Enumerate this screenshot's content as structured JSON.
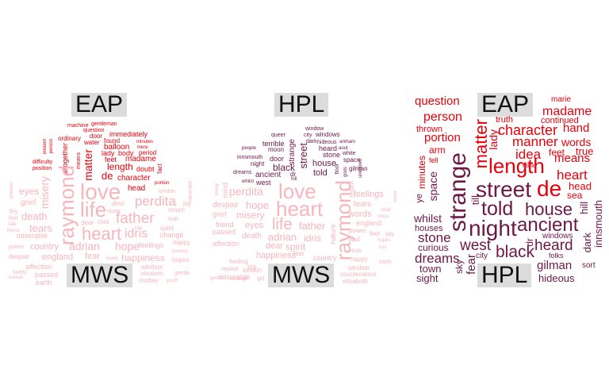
{
  "colors": {
    "eap": "#e8000b",
    "hpl": "#6e1848",
    "mws": "#f7b5bd",
    "tag_bg": "#dcdcdc"
  },
  "panels": [
    {
      "id": "left",
      "top_label": "EAP",
      "bottom_label": "MWS",
      "eap_words": [
        "machine",
        "gentleman",
        "question",
        "door",
        "immediately",
        "ordinary",
        "water",
        "found",
        "minutes",
        "mere",
        "person",
        "evident",
        "balloon",
        "lady",
        "body",
        "period",
        "altogether",
        "matter",
        "length",
        "feet",
        "madame",
        "difficulty",
        "position",
        "de",
        "character",
        "doubt",
        "fact",
        "means",
        "portion",
        "head"
      ],
      "mws_words": [
        "love",
        "life",
        "heart",
        "raymond",
        "father",
        "perdita",
        "misery",
        "eyes",
        "death",
        "tears",
        "grief",
        "idris",
        "adrian",
        "hope",
        "happiness",
        "country",
        "england",
        "fear",
        "feelings",
        "miserable",
        "windsor",
        "affection",
        "passed",
        "earth",
        "mother",
        "youth",
        "gentle",
        "power",
        "despair",
        "sister",
        "spirit",
        "return",
        "sun",
        "change",
        "hopes",
        "happy",
        "journey",
        "elizabeth",
        "lovely",
        "human",
        "loved",
        "dear",
        "child",
        "joy",
        "thy",
        "feel",
        "tale",
        "friend",
        "children",
        "london",
        "returned",
        "died",
        "lost"
      ]
    },
    {
      "id": "middle",
      "top_label": "HPL",
      "bottom_label": "MWS",
      "hpl_words": [
        "queer",
        "window",
        "city",
        "windows",
        "terrible",
        "dark",
        "hideous",
        "arkham",
        "moon",
        "people",
        "strange",
        "heard",
        "aout",
        "street",
        "innsmouth",
        "door",
        "stone",
        "white",
        "night",
        "black",
        "house",
        "space",
        "ancient",
        "dr",
        "floor",
        "gilman",
        "dreams",
        "west",
        "told",
        "gods",
        "whilst",
        "hill",
        "unknown"
      ],
      "mws_words": [
        "love",
        "heart",
        "life",
        "raymond",
        "perdita",
        "hope",
        "misery",
        "eyes",
        "death",
        "adrian",
        "dear",
        "spirit",
        "father",
        "idris",
        "happiness",
        "country",
        "feelings",
        "tears",
        "words",
        "england",
        "nature",
        "power",
        "soul",
        "hopes",
        "sun",
        "windsor",
        "elizabeth",
        "countenance",
        "feeling",
        "miserable",
        "joy",
        "london",
        "replied",
        "change",
        "girl",
        "gentle",
        "despair",
        "grief",
        "friend",
        "affection",
        "passed",
        "mind",
        "lovely",
        "voice",
        "child",
        "sister",
        "return",
        "feet",
        "day",
        "earth",
        "happy",
        "fear",
        "lost"
      ]
    },
    {
      "id": "right",
      "top_label": "EAP",
      "bottom_label": "HPL",
      "eap_words": [
        "question",
        "marie",
        "madame",
        "truth",
        "person",
        "continued",
        "character",
        "hand",
        "thrown",
        "portion",
        "manner",
        "words",
        "arm",
        "lady",
        "matter",
        "idea",
        "means",
        "true",
        "fell",
        "feet",
        "length",
        "heart",
        "minutes",
        "head",
        "de",
        "sea",
        "mind"
      ],
      "hpl_words": [
        "strange",
        "street",
        "told",
        "night",
        "house",
        "ancient",
        "west",
        "black",
        "heard",
        "dreams",
        "stone",
        "whilst",
        "houses",
        "curious",
        "town",
        "sight",
        "sky",
        "fear",
        "city",
        "gilman",
        "windows",
        "folks",
        "hideous",
        "sort",
        "dark",
        "innsmouth",
        "hill",
        "space",
        "till",
        "ye",
        "dr"
      ]
    }
  ]
}
